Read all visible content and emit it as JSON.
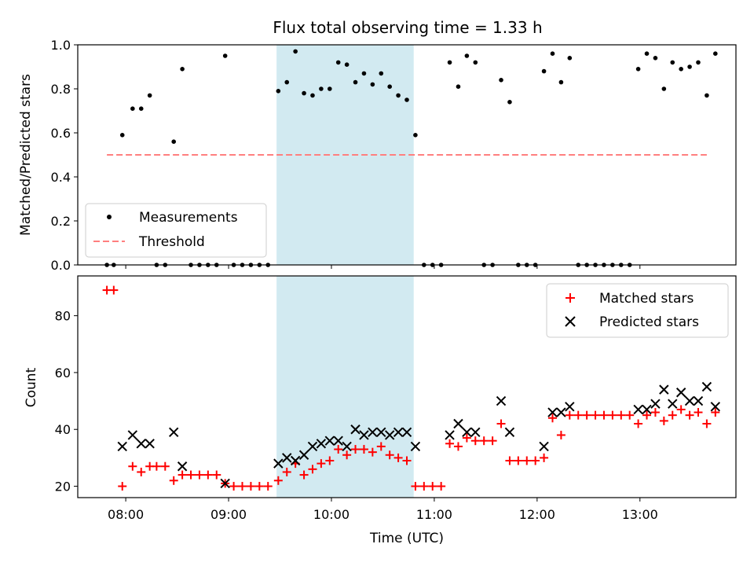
{
  "chart_data": [
    {
      "type": "scatter",
      "title": "Flux total observing time = 1.33 h",
      "xlabel": "",
      "ylabel": "Matched/Predicted stars",
      "xlim": [
        "07:32",
        "13:56"
      ],
      "ylim": [
        0,
        1.0
      ],
      "yticks": [
        "0.0",
        "0.2",
        "0.4",
        "0.6",
        "0.8",
        "1.0"
      ],
      "shaded_span": [
        "09:28",
        "10:48"
      ],
      "shade_color": "#add8e6",
      "legend_position": "lower-left",
      "series": [
        {
          "name": "Measurements",
          "color": "#000000",
          "marker": "dot",
          "points": [
            [
              "07:49",
              0
            ],
            [
              "07:53",
              0
            ],
            [
              "07:58",
              0.59
            ],
            [
              "08:04",
              0.71
            ],
            [
              "08:09",
              0.71
            ],
            [
              "08:14",
              0.77
            ],
            [
              "08:18",
              0
            ],
            [
              "08:23",
              0
            ],
            [
              "08:28",
              0.56
            ],
            [
              "08:33",
              0.89
            ],
            [
              "08:38",
              0
            ],
            [
              "08:43",
              0
            ],
            [
              "08:48",
              0
            ],
            [
              "08:53",
              0
            ],
            [
              "08:58",
              0.95
            ],
            [
              "09:03",
              0
            ],
            [
              "09:08",
              0
            ],
            [
              "09:13",
              0
            ],
            [
              "09:18",
              0
            ],
            [
              "09:23",
              0
            ],
            [
              "09:29",
              0.79
            ],
            [
              "09:34",
              0.83
            ],
            [
              "09:39",
              0.97
            ],
            [
              "09:44",
              0.78
            ],
            [
              "09:49",
              0.77
            ],
            [
              "09:54",
              0.8
            ],
            [
              "09:59",
              0.8
            ],
            [
              "10:04",
              0.92
            ],
            [
              "10:09",
              0.91
            ],
            [
              "10:14",
              0.83
            ],
            [
              "10:19",
              0.87
            ],
            [
              "10:24",
              0.82
            ],
            [
              "10:29",
              0.87
            ],
            [
              "10:34",
              0.81
            ],
            [
              "10:39",
              0.77
            ],
            [
              "10:44",
              0.75
            ],
            [
              "10:49",
              0.59
            ],
            [
              "10:54",
              0
            ],
            [
              "10:59",
              0
            ],
            [
              "11:04",
              0
            ],
            [
              "11:09",
              0.92
            ],
            [
              "11:14",
              0.81
            ],
            [
              "11:19",
              0.95
            ],
            [
              "11:24",
              0.92
            ],
            [
              "11:29",
              0
            ],
            [
              "11:34",
              0
            ],
            [
              "11:39",
              0.84
            ],
            [
              "11:44",
              0.74
            ],
            [
              "11:49",
              0
            ],
            [
              "11:54",
              0
            ],
            [
              "11:59",
              0
            ],
            [
              "12:04",
              0.88
            ],
            [
              "12:09",
              0.96
            ],
            [
              "12:14",
              0.83
            ],
            [
              "12:19",
              0.94
            ],
            [
              "12:24",
              0
            ],
            [
              "12:29",
              0
            ],
            [
              "12:34",
              0
            ],
            [
              "12:39",
              0
            ],
            [
              "12:44",
              0
            ],
            [
              "12:49",
              0
            ],
            [
              "12:54",
              0
            ],
            [
              "12:59",
              0.89
            ],
            [
              "13:04",
              0.96
            ],
            [
              "13:09",
              0.94
            ],
            [
              "13:14",
              0.8
            ],
            [
              "13:19",
              0.92
            ],
            [
              "13:24",
              0.89
            ],
            [
              "13:29",
              0.9
            ],
            [
              "13:34",
              0.92
            ],
            [
              "13:39",
              0.77
            ],
            [
              "13:44",
              0.96
            ]
          ]
        },
        {
          "name": "Threshold",
          "color": "#ff7f7f",
          "style": "dashed",
          "points": [
            [
              "07:49",
              0.5
            ],
            [
              "13:39",
              0.5
            ]
          ]
        }
      ]
    },
    {
      "type": "scatter",
      "title": "",
      "xlabel": "Time (UTC)",
      "ylabel": "Count",
      "xlim": [
        "07:32",
        "13:56"
      ],
      "ylim": [
        16,
        94
      ],
      "yticks": [
        "20",
        "40",
        "60",
        "80"
      ],
      "xticks": [
        "08:00",
        "09:00",
        "10:00",
        "11:00",
        "12:00",
        "13:00"
      ],
      "shaded_span": [
        "09:28",
        "10:48"
      ],
      "shade_color": "#add8e6",
      "legend_position": "upper-right",
      "series": [
        {
          "name": "Matched stars",
          "color": "#ff0000",
          "marker": "plus",
          "points": [
            [
              "07:49",
              89
            ],
            [
              "07:53",
              89
            ],
            [
              "07:58",
              20
            ],
            [
              "08:04",
              27
            ],
            [
              "08:09",
              25
            ],
            [
              "08:14",
              27
            ],
            [
              "08:18",
              27
            ],
            [
              "08:23",
              27
            ],
            [
              "08:28",
              22
            ],
            [
              "08:33",
              24
            ],
            [
              "08:38",
              24
            ],
            [
              "08:43",
              24
            ],
            [
              "08:48",
              24
            ],
            [
              "08:53",
              24
            ],
            [
              "08:58",
              21
            ],
            [
              "09:03",
              20
            ],
            [
              "09:08",
              20
            ],
            [
              "09:13",
              20
            ],
            [
              "09:18",
              20
            ],
            [
              "09:23",
              20
            ],
            [
              "09:29",
              22
            ],
            [
              "09:34",
              25
            ],
            [
              "09:39",
              28
            ],
            [
              "09:44",
              24
            ],
            [
              "09:49",
              26
            ],
            [
              "09:54",
              28
            ],
            [
              "09:59",
              29
            ],
            [
              "10:04",
              33
            ],
            [
              "10:09",
              31
            ],
            [
              "10:14",
              33
            ],
            [
              "10:19",
              33
            ],
            [
              "10:24",
              32
            ],
            [
              "10:29",
              34
            ],
            [
              "10:34",
              31
            ],
            [
              "10:39",
              30
            ],
            [
              "10:44",
              29
            ],
            [
              "10:49",
              20
            ],
            [
              "10:54",
              20
            ],
            [
              "10:59",
              20
            ],
            [
              "11:04",
              20
            ],
            [
              "11:09",
              35
            ],
            [
              "11:14",
              34
            ],
            [
              "11:19",
              37
            ],
            [
              "11:24",
              36
            ],
            [
              "11:29",
              36
            ],
            [
              "11:34",
              36
            ],
            [
              "11:39",
              42
            ],
            [
              "11:44",
              29
            ],
            [
              "11:49",
              29
            ],
            [
              "11:54",
              29
            ],
            [
              "11:59",
              29
            ],
            [
              "12:04",
              30
            ],
            [
              "12:09",
              44
            ],
            [
              "12:14",
              38
            ],
            [
              "12:19",
              45
            ],
            [
              "12:24",
              45
            ],
            [
              "12:29",
              45
            ],
            [
              "12:34",
              45
            ],
            [
              "12:39",
              45
            ],
            [
              "12:44",
              45
            ],
            [
              "12:49",
              45
            ],
            [
              "12:54",
              45
            ],
            [
              "12:59",
              42
            ],
            [
              "13:04",
              45
            ],
            [
              "13:09",
              46
            ],
            [
              "13:14",
              43
            ],
            [
              "13:19",
              45
            ],
            [
              "13:24",
              47
            ],
            [
              "13:29",
              45
            ],
            [
              "13:34",
              46
            ],
            [
              "13:39",
              42
            ],
            [
              "13:44",
              46
            ]
          ]
        },
        {
          "name": "Predicted stars",
          "color": "#000000",
          "marker": "x",
          "points": [
            [
              "07:58",
              34
            ],
            [
              "08:04",
              38
            ],
            [
              "08:09",
              35
            ],
            [
              "08:14",
              35
            ],
            [
              "08:28",
              39
            ],
            [
              "08:33",
              27
            ],
            [
              "08:58",
              21
            ],
            [
              "09:29",
              28
            ],
            [
              "09:34",
              30
            ],
            [
              "09:39",
              29
            ],
            [
              "09:44",
              31
            ],
            [
              "09:49",
              34
            ],
            [
              "09:54",
              35
            ],
            [
              "09:59",
              36
            ],
            [
              "10:04",
              36
            ],
            [
              "10:09",
              34
            ],
            [
              "10:14",
              40
            ],
            [
              "10:19",
              38
            ],
            [
              "10:24",
              39
            ],
            [
              "10:29",
              39
            ],
            [
              "10:34",
              38
            ],
            [
              "10:39",
              39
            ],
            [
              "10:44",
              39
            ],
            [
              "10:49",
              34
            ],
            [
              "11:09",
              38
            ],
            [
              "11:14",
              42
            ],
            [
              "11:19",
              39
            ],
            [
              "11:24",
              39
            ],
            [
              "11:39",
              50
            ],
            [
              "11:44",
              39
            ],
            [
              "12:04",
              34
            ],
            [
              "12:09",
              46
            ],
            [
              "12:14",
              46
            ],
            [
              "12:19",
              48
            ],
            [
              "12:59",
              47
            ],
            [
              "13:04",
              47
            ],
            [
              "13:09",
              49
            ],
            [
              "13:14",
              54
            ],
            [
              "13:19",
              49
            ],
            [
              "13:24",
              53
            ],
            [
              "13:29",
              50
            ],
            [
              "13:34",
              50
            ],
            [
              "13:39",
              55
            ],
            [
              "13:44",
              48
            ]
          ]
        }
      ]
    }
  ]
}
